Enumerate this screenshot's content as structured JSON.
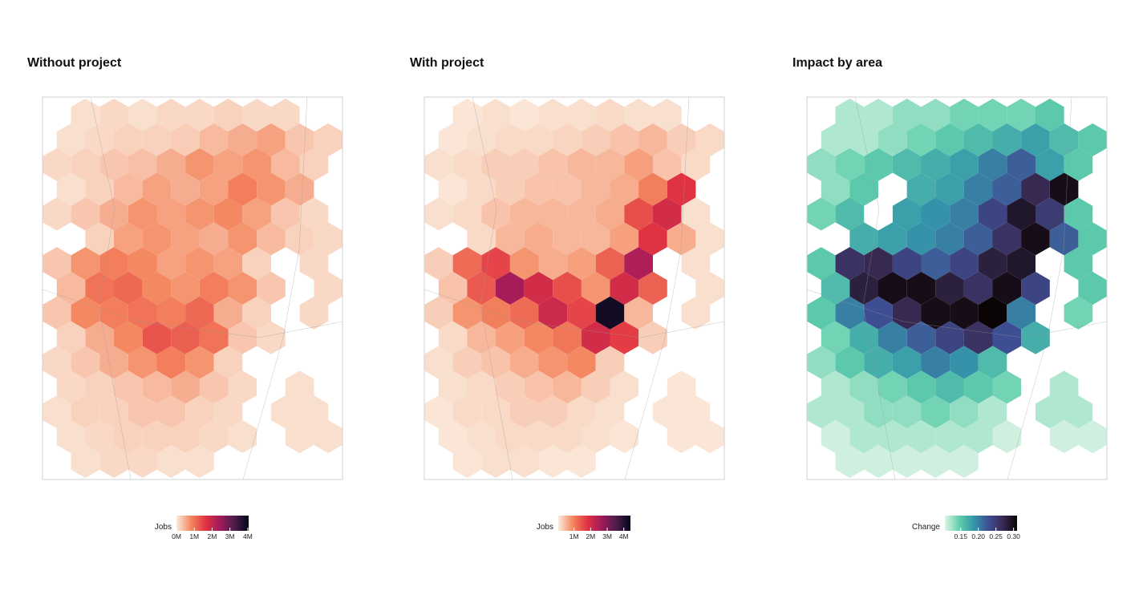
{
  "panels": [
    {
      "title": "Without project",
      "grid": [
        [
          null,
          100000,
          150000,
          100000,
          150000,
          150000,
          200000,
          150000,
          150000,
          null
        ],
        [
          100000,
          150000,
          200000,
          200000,
          250000,
          400000,
          500000,
          600000,
          300000,
          200000
        ],
        [
          150000,
          200000,
          300000,
          350000,
          500000,
          700000,
          600000,
          700000,
          400000,
          200000
        ],
        [
          100000,
          200000,
          400000,
          600000,
          500000,
          600000,
          900000,
          700000,
          500000,
          null
        ],
        [
          150000,
          300000,
          500000,
          700000,
          600000,
          700000,
          800000,
          600000,
          300000,
          150000
        ],
        [
          null,
          200000,
          600000,
          700000,
          600000,
          500000,
          700000,
          400000,
          200000,
          150000
        ],
        [
          300000,
          700000,
          900000,
          800000,
          600000,
          700000,
          600000,
          200000,
          null,
          150000
        ],
        [
          400000,
          1000000,
          1100000,
          800000,
          700000,
          900000,
          700000,
          300000,
          null,
          150000
        ],
        [
          300000,
          800000,
          900000,
          1000000,
          900000,
          1100000,
          500000,
          200000,
          null,
          150000
        ],
        [
          200000,
          500000,
          800000,
          1300000,
          1200000,
          1000000,
          300000,
          150000,
          null,
          null
        ],
        [
          150000,
          300000,
          500000,
          700000,
          900000,
          700000,
          200000,
          null,
          null,
          null
        ],
        [
          150000,
          200000,
          300000,
          400000,
          500000,
          300000,
          150000,
          null,
          100000,
          null
        ],
        [
          100000,
          200000,
          200000,
          300000,
          300000,
          200000,
          150000,
          null,
          100000,
          100000
        ],
        [
          100000,
          150000,
          200000,
          200000,
          200000,
          150000,
          100000,
          null,
          100000,
          100000
        ],
        [
          null,
          100000,
          150000,
          150000,
          100000,
          100000,
          null,
          null,
          null,
          null
        ]
      ],
      "legend": {
        "title": "Jobs",
        "lim": [
          0,
          4050000
        ],
        "ticks": [
          {
            "value": 0,
            "label": "0M"
          },
          {
            "value": 1000000,
            "label": "1M"
          },
          {
            "value": 2000000,
            "label": "2M"
          },
          {
            "value": 3000000,
            "label": "3M"
          },
          {
            "value": 4000000,
            "label": "4M"
          }
        ],
        "colors": [
          "#faebdd",
          "#f4875e",
          "#e13342",
          "#a11a5b",
          "#4c1d4b",
          "#03051a"
        ]
      }
    },
    {
      "title": "With project",
      "grid": [
        [
          null,
          100000,
          150000,
          100000,
          150000,
          150000,
          200000,
          150000,
          150000,
          null
        ],
        [
          100000,
          150000,
          200000,
          200000,
          250000,
          300000,
          400000,
          500000,
          300000,
          200000
        ],
        [
          150000,
          200000,
          300000,
          300000,
          400000,
          500000,
          500000,
          700000,
          400000,
          200000
        ],
        [
          100000,
          200000,
          300000,
          400000,
          400000,
          500000,
          600000,
          1000000,
          1800000,
          null
        ],
        [
          150000,
          200000,
          400000,
          500000,
          500000,
          500000,
          600000,
          1500000,
          2000000,
          150000
        ],
        [
          null,
          200000,
          500000,
          600000,
          500000,
          500000,
          700000,
          1800000,
          600000,
          150000
        ],
        [
          300000,
          1200000,
          1600000,
          800000,
          600000,
          700000,
          1300000,
          2500000,
          null,
          150000
        ],
        [
          400000,
          1400000,
          2600000,
          2000000,
          1500000,
          800000,
          2000000,
          1300000,
          null,
          150000
        ],
        [
          300000,
          800000,
          1000000,
          1200000,
          2100000,
          1600000,
          4200000,
          500000,
          null,
          150000
        ],
        [
          200000,
          500000,
          700000,
          900000,
          1100000,
          2000000,
          1700000,
          300000,
          null,
          null
        ],
        [
          150000,
          300000,
          400000,
          600000,
          800000,
          900000,
          300000,
          null,
          null,
          null
        ],
        [
          150000,
          200000,
          300000,
          400000,
          500000,
          300000,
          150000,
          null,
          100000,
          null
        ],
        [
          100000,
          200000,
          200000,
          300000,
          300000,
          200000,
          150000,
          null,
          100000,
          100000
        ],
        [
          100000,
          150000,
          200000,
          200000,
          200000,
          150000,
          100000,
          null,
          100000,
          100000
        ],
        [
          null,
          100000,
          150000,
          150000,
          100000,
          100000,
          null,
          null,
          null,
          null
        ]
      ],
      "legend": {
        "title": "Jobs",
        "lim": [
          50000,
          4400000
        ],
        "ticks": [
          {
            "value": 1000000,
            "label": "1M"
          },
          {
            "value": 2000000,
            "label": "2M"
          },
          {
            "value": 3000000,
            "label": "3M"
          },
          {
            "value": 4000000,
            "label": "4M"
          }
        ],
        "colors": [
          "#faebdd",
          "#f4875e",
          "#e13342",
          "#a11a5b",
          "#4c1d4b",
          "#03051a"
        ]
      }
    },
    {
      "title": "Impact by area",
      "grid": [
        [
          null,
          0.12,
          0.12,
          0.13,
          0.13,
          0.14,
          0.14,
          0.14,
          0.15,
          null
        ],
        [
          0.12,
          0.12,
          0.13,
          0.14,
          0.15,
          0.16,
          0.17,
          0.18,
          0.16,
          0.15
        ],
        [
          0.13,
          0.14,
          0.15,
          0.16,
          0.17,
          0.18,
          0.2,
          0.22,
          0.18,
          0.15
        ],
        [
          0.13,
          0.15,
          null,
          0.17,
          0.18,
          0.2,
          0.22,
          0.27,
          0.3,
          null
        ],
        [
          0.14,
          0.16,
          null,
          0.18,
          0.19,
          0.2,
          0.24,
          0.29,
          0.25,
          0.15
        ],
        [
          null,
          0.17,
          0.18,
          0.19,
          0.2,
          0.22,
          0.26,
          0.3,
          0.22,
          0.15
        ],
        [
          0.15,
          0.26,
          0.27,
          0.24,
          0.22,
          0.24,
          0.28,
          0.29,
          null,
          0.15
        ],
        [
          0.16,
          0.28,
          0.3,
          0.3,
          0.28,
          0.26,
          0.3,
          0.24,
          null,
          0.15
        ],
        [
          0.15,
          0.2,
          0.23,
          0.27,
          0.3,
          0.3,
          0.31,
          0.2,
          null,
          0.14
        ],
        [
          0.14,
          0.17,
          0.2,
          0.22,
          0.24,
          0.26,
          0.23,
          0.17,
          null,
          null
        ],
        [
          0.13,
          0.15,
          0.17,
          0.18,
          0.2,
          0.19,
          0.16,
          null,
          null,
          null
        ],
        [
          0.12,
          0.13,
          0.14,
          0.15,
          0.16,
          0.15,
          0.14,
          null,
          0.12,
          null
        ],
        [
          0.12,
          0.12,
          0.13,
          0.13,
          0.14,
          0.13,
          0.12,
          null,
          0.12,
          0.12
        ],
        [
          0.11,
          0.12,
          0.12,
          0.12,
          0.12,
          0.12,
          0.11,
          null,
          0.11,
          0.11
        ],
        [
          null,
          0.11,
          0.11,
          0.11,
          0.11,
          0.11,
          null,
          null,
          null,
          null
        ]
      ],
      "legend": {
        "title": "Change",
        "lim": [
          0.105,
          0.31
        ],
        "ticks": [
          0.15,
          {
            "value": 0.2,
            "label": "0.20"
          },
          0.25,
          {
            "value": 0.3,
            "label": "0.30"
          }
        ],
        "colors": [
          "#def5e5",
          "#60ceac",
          "#3497a9",
          "#3e5095",
          "#382a54",
          "#0b0405"
        ]
      }
    }
  ]
}
